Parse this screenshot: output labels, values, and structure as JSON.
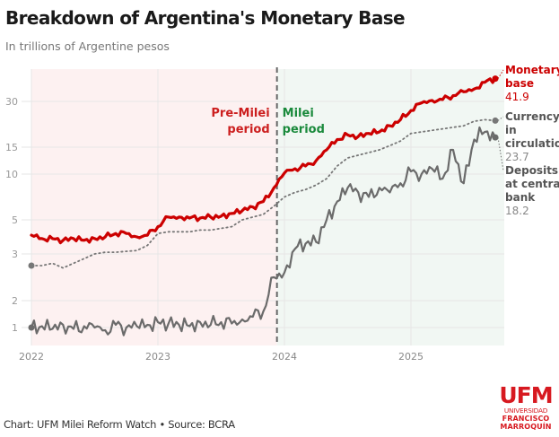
{
  "header": {
    "title": "Breakdown of Argentina's Monetary Base",
    "subtitle": "In trillions of Argentine pesos"
  },
  "footer": {
    "credit": "Chart: UFM Milei Reform Watch • Source: BCRA"
  },
  "logo": {
    "acronym": "UFM",
    "line1": "UNIVERSIDAD",
    "line2": "FRANCISCO",
    "line3": "MARROQUÍN",
    "color": "#d71920"
  },
  "chart_data": {
    "type": "line",
    "title": "Breakdown of Argentina's Monetary Base",
    "subtitle": "In trillions of Argentine pesos",
    "xlabel": "",
    "ylabel": "",
    "x_start": "2022-01",
    "x_step": "month",
    "xlim": [
      "2022-01",
      "2025-09"
    ],
    "ylim": [
      0.8,
      45
    ],
    "y_ticks": [
      1,
      2,
      3,
      5,
      10,
      15,
      30
    ],
    "x_ticks": [
      "2022",
      "2023",
      "2024",
      "2025"
    ],
    "grid": true,
    "periods": [
      {
        "label": "Pre-Milei period",
        "label_lines": [
          "Pre-Milei",
          "period"
        ],
        "from": "2022-01",
        "to": "2023-12-10",
        "color": "#fdf1f1",
        "text_color": "#cc1f1f"
      },
      {
        "label": "Milei period",
        "label_lines": [
          "Milei",
          "period"
        ],
        "from": "2023-12-10",
        "to": "2025-09",
        "color": "#f1f7f3",
        "text_color": "#1a8a3c"
      }
    ],
    "divider": "2023-12-10",
    "series": [
      {
        "name": "Monetary base",
        "label_lines": [
          "Monetary",
          "base"
        ],
        "end_value": "41.9",
        "color": "#cc0000",
        "style": "solid-thick",
        "values": [
          4.1,
          3.9,
          3.9,
          3.8,
          3.9,
          3.8,
          3.9,
          4.0,
          4.2,
          4.2,
          4.0,
          4.1,
          4.6,
          5.3,
          5.3,
          5.2,
          5.2,
          5.3,
          5.4,
          5.7,
          6.0,
          6.4,
          7.0,
          8.5,
          10.2,
          11.0,
          11.5,
          12.5,
          14.5,
          17.5,
          19.0,
          18.5,
          19.5,
          20.0,
          22.0,
          24.0,
          27.0,
          29.5,
          30.5,
          31.0,
          33.0,
          35.0,
          36.5,
          40.0,
          41.9
        ]
      },
      {
        "name": "Currency in circulation",
        "label_lines": [
          "Currency",
          "in",
          "circulation"
        ],
        "end_value": "23.7",
        "color": "#777777",
        "style": "dotted",
        "values": [
          2.75,
          2.75,
          2.8,
          2.7,
          2.8,
          2.9,
          3.0,
          3.1,
          3.1,
          3.15,
          3.2,
          3.5,
          4.2,
          4.3,
          4.3,
          4.3,
          4.4,
          4.4,
          4.5,
          4.6,
          5.0,
          5.3,
          5.6,
          6.5,
          7.5,
          8.0,
          8.3,
          8.8,
          9.5,
          11.5,
          13.0,
          13.5,
          14.0,
          14.5,
          15.5,
          17.0,
          19.5,
          20.0,
          20.5,
          21.0,
          21.5,
          22.0,
          23.5,
          24.0,
          23.7
        ]
      },
      {
        "name": "Deposits at central bank",
        "label_lines": [
          "Deposits",
          "at central",
          "bank"
        ],
        "end_value": "18.2",
        "color": "#6b6b6b",
        "style": "solid",
        "values": [
          1.0,
          1.05,
          0.95,
          1.1,
          0.95,
          1.05,
          1.0,
          0.9,
          1.1,
          1.0,
          1.05,
          1.1,
          1.2,
          1.15,
          1.1,
          1.05,
          1.2,
          1.1,
          1.2,
          1.15,
          1.3,
          1.4,
          1.6,
          2.5,
          2.6,
          3.3,
          3.6,
          3.7,
          5.0,
          7.0,
          8.5,
          8.0,
          7.5,
          8.5,
          8.0,
          9.0,
          10.5,
          10.0,
          11.0,
          9.5,
          14.5,
          9.0,
          17.5,
          20.0,
          18.2
        ]
      }
    ]
  }
}
